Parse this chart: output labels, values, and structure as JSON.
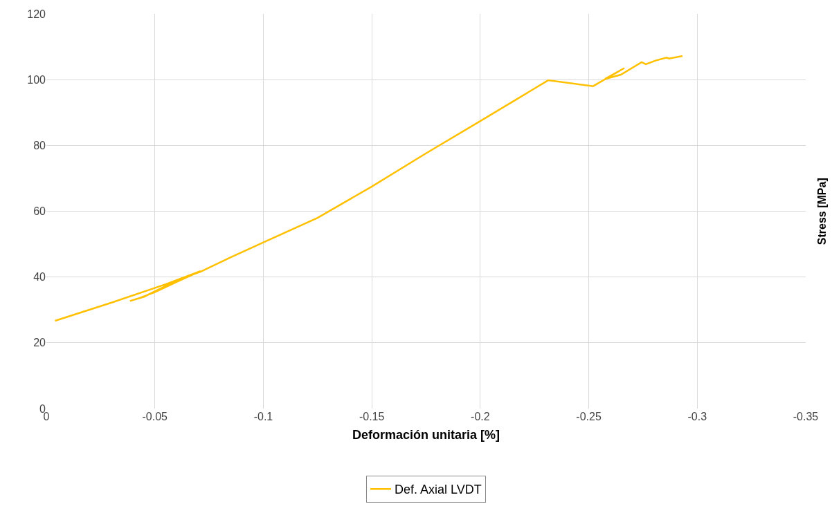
{
  "chart_data": {
    "type": "line",
    "xlabel": "Deformación unitaria [%]",
    "ylabel": "Stress [MPa]",
    "xlim": [
      0,
      -0.35
    ],
    "xticks": [
      0,
      -0.05,
      -0.1,
      -0.15,
      -0.2,
      -0.25,
      -0.3,
      -0.35
    ],
    "ylim": [
      0,
      120
    ],
    "yticks": [
      0,
      20,
      40,
      60,
      80,
      100,
      120
    ],
    "grid": true,
    "legend": "bottom",
    "marker": "none",
    "line_style": "solid",
    "series": [
      {
        "name": "Def. Axial LVDT",
        "color": "#ffc000",
        "x": [
          -0.004,
          -0.03,
          -0.055,
          -0.071,
          -0.06,
          -0.05,
          -0.042,
          -0.0385,
          -0.045,
          -0.055,
          -0.065,
          -0.071,
          -0.085,
          -0.1,
          -0.125,
          -0.15,
          -0.175,
          -0.2,
          -0.2313,
          -0.252,
          -0.2664,
          -0.2575,
          -0.2648,
          -0.2744,
          -0.2763,
          -0.2808,
          -0.2859,
          -0.287,
          -0.2932
        ],
        "values": [
          26.7,
          32.2,
          37.8,
          41.8,
          38.5,
          35.4,
          33.4,
          32.7,
          34.0,
          37.3,
          40.2,
          41.6,
          46,
          50.5,
          58,
          67.5,
          77.6,
          87.4,
          99.8,
          98.0,
          103.5,
          100.2,
          101.5,
          105.3,
          104.7,
          105.8,
          106.7,
          106.4,
          107.2
        ]
      }
    ]
  }
}
